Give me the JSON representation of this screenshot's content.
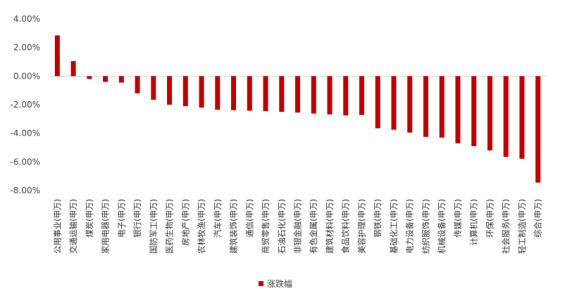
{
  "chart_data": {
    "type": "bar",
    "categories": [
      "公用事业(申万)",
      "交通运输(申万)",
      "煤炭(申万)",
      "家用电器(申万)",
      "电子(申万)",
      "银行(申万)",
      "国防军工(申万)",
      "医药生物(申万)",
      "房地产(申万)",
      "农林牧渔(申万)",
      "汽车(申万)",
      "建筑装饰(申万)",
      "通信(申万)",
      "商贸零售(申万)",
      "石油石化(申万)",
      "非银金融(申万)",
      "有色金属(申万)",
      "建筑材料(申万)",
      "食品饮料(申万)",
      "美容护理(申万)",
      "钢铁(申万)",
      "基础化工(申万)",
      "电力设备(申万)",
      "纺织服饰(申万)",
      "机械设备(申万)",
      "传媒(申万)",
      "计算机(申万)",
      "环保(申万)",
      "社会服务(申万)",
      "轻工制造(申万)",
      "综合(申万)"
    ],
    "series": [
      {
        "name": "涨跌幅",
        "values": [
          2.85,
          1.05,
          -0.2,
          -0.4,
          -0.45,
          -1.2,
          -1.65,
          -2.0,
          -2.1,
          -2.2,
          -2.35,
          -2.38,
          -2.42,
          -2.45,
          -2.5,
          -2.55,
          -2.62,
          -2.68,
          -2.75,
          -2.72,
          -3.65,
          -3.75,
          -3.95,
          -4.25,
          -4.3,
          -4.7,
          -4.9,
          -5.2,
          -5.65,
          -5.78,
          -7.45
        ]
      }
    ],
    "ylim": [
      -8,
      4
    ],
    "yticks": [
      4,
      2,
      0,
      -2,
      -4,
      -6,
      -8
    ],
    "ytick_labels": [
      "4.00%",
      "2.00%",
      "0.00%",
      "-2.00%",
      "-4.00%",
      "-6.00%",
      "-8.00%"
    ],
    "grid": false,
    "legend": "bottom",
    "colors": {
      "bar": "#c00000",
      "axis": "#d0d0d0"
    }
  }
}
